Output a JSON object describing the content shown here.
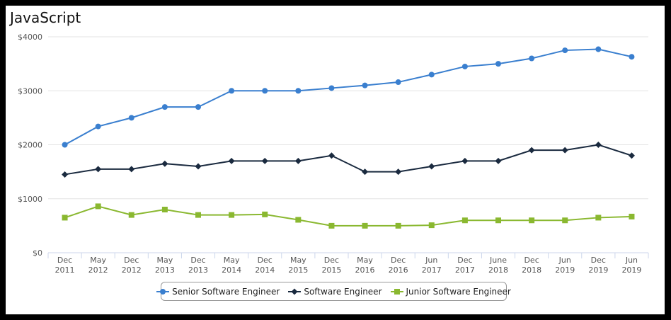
{
  "chart_data": {
    "type": "line",
    "title": "JavaScript",
    "categories": [
      "Dec 2011",
      "May 2012",
      "Dec 2012",
      "May 2013",
      "Dec 2013",
      "May 2014",
      "Dec 2014",
      "May 2015",
      "Dec 2015",
      "May 2016",
      "Dec 2016",
      "Jun 2017",
      "Dec 2017",
      "June 2018",
      "Dec 2018",
      "Jun 2019",
      "Dec 2019",
      "Jun 2019"
    ],
    "category_lines": [
      [
        "Dec",
        "2011"
      ],
      [
        "May",
        "2012"
      ],
      [
        "Dec",
        "2012"
      ],
      [
        "May",
        "2013"
      ],
      [
        "Dec",
        "2013"
      ],
      [
        "May",
        "2014"
      ],
      [
        "Dec",
        "2014"
      ],
      [
        "May",
        "2015"
      ],
      [
        "Dec",
        "2015"
      ],
      [
        "May",
        "2016"
      ],
      [
        "Dec",
        "2016"
      ],
      [
        "Jun",
        "2017"
      ],
      [
        "Dec",
        "2017"
      ],
      [
        "June",
        "2018"
      ],
      [
        "Dec",
        "2018"
      ],
      [
        "Jun",
        "2019"
      ],
      [
        "Dec",
        "2019"
      ],
      [
        "Jun",
        "2019"
      ]
    ],
    "ylim": [
      0,
      4000
    ],
    "yticks": [
      0,
      1000,
      2000,
      3000,
      4000
    ],
    "ytick_labels": [
      "$0",
      "$1000",
      "$2000",
      "$3000",
      "$4000"
    ],
    "grid": true,
    "legend_position": "bottom",
    "series": [
      {
        "name": "Senior Software Engineer",
        "color": "#3a7fcf",
        "marker": "circle",
        "values": [
          2000,
          2340,
          2500,
          2700,
          2700,
          3000,
          3000,
          3000,
          3050,
          3100,
          3160,
          3300,
          3450,
          3500,
          3600,
          3750,
          3770,
          3630
        ]
      },
      {
        "name": "Software Engineer",
        "color": "#1a2a3f",
        "marker": "diamond",
        "values": [
          1450,
          1550,
          1550,
          1650,
          1600,
          1700,
          1700,
          1700,
          1800,
          1500,
          1500,
          1600,
          1700,
          1700,
          1900,
          1900,
          2000,
          1800
        ]
      },
      {
        "name": "Junior Software Engineer",
        "color": "#8ab830",
        "marker": "square",
        "values": [
          650,
          860,
          700,
          800,
          700,
          700,
          710,
          610,
          500,
          500,
          500,
          510,
          600,
          600,
          600,
          600,
          650,
          670
        ]
      }
    ]
  }
}
